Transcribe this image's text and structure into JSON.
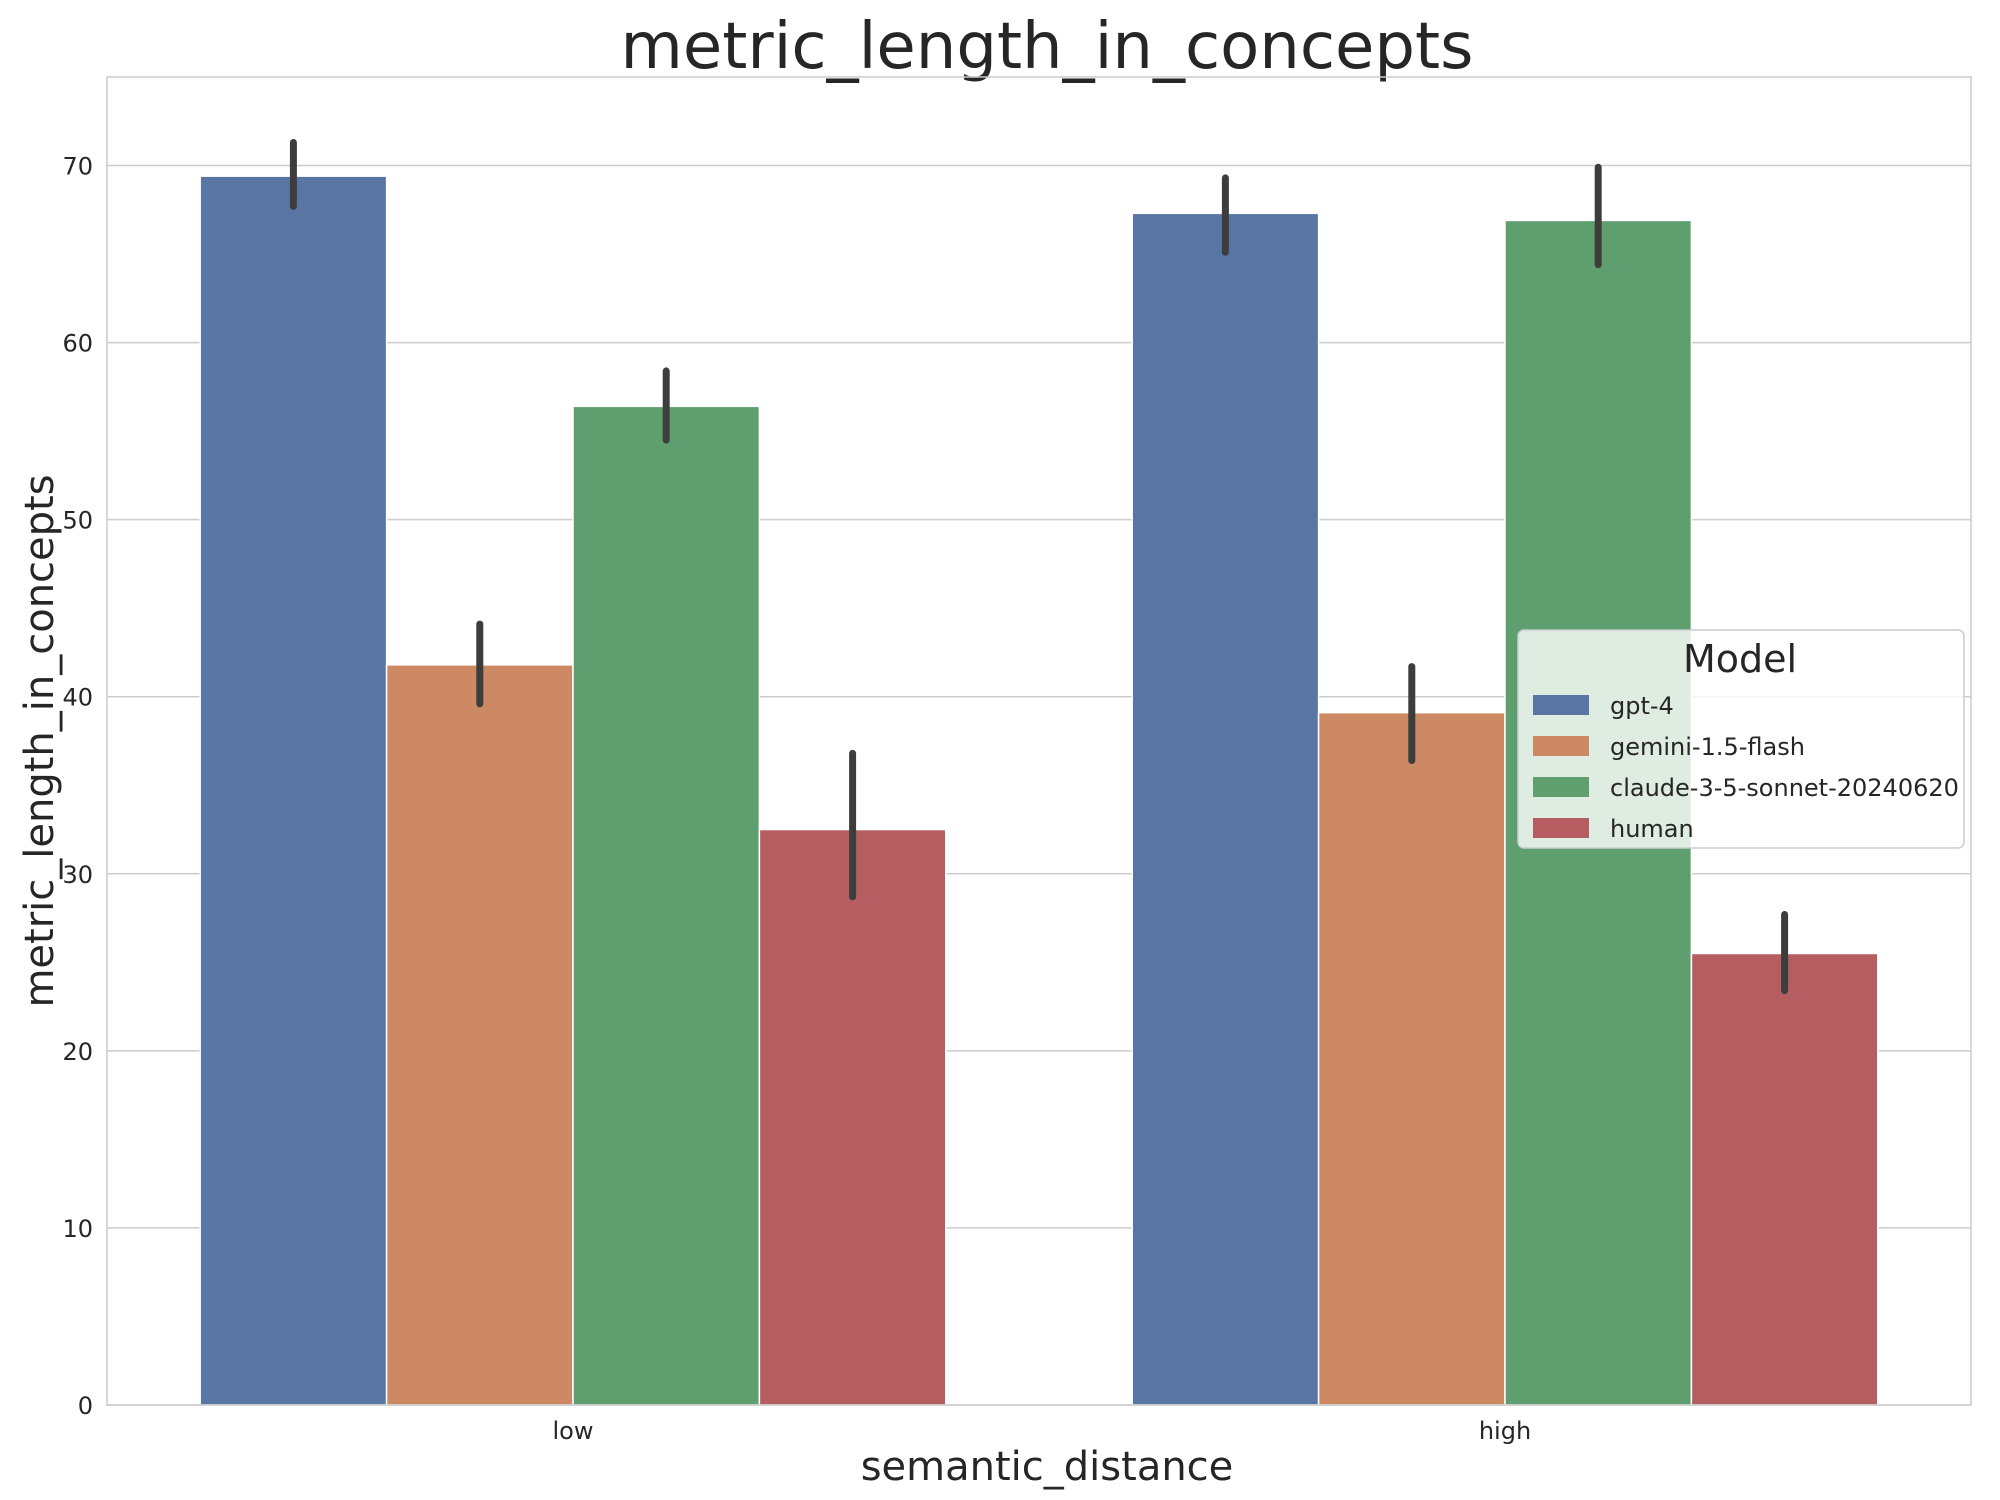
{
  "chart_data": {
    "type": "bar",
    "title": "metric_length_in_concepts",
    "xlabel": "semantic_distance",
    "ylabel": "metric_length_in_concepts",
    "categories": [
      "low",
      "high"
    ],
    "ylim": [
      0,
      75
    ],
    "yticks": [
      0,
      10,
      20,
      30,
      40,
      50,
      60,
      70
    ],
    "grid": true,
    "legend": {
      "title": "Model",
      "position": "center-right"
    },
    "series": [
      {
        "name": "gpt-4",
        "color": "#5975a4",
        "values": [
          69.4,
          67.3
        ],
        "ci": [
          [
            67.7,
            71.3
          ],
          [
            65.1,
            69.3
          ]
        ]
      },
      {
        "name": "gemini-1.5-flash",
        "color": "#cc8963",
        "values": [
          41.8,
          39.1
        ],
        "ci": [
          [
            39.6,
            44.1
          ],
          [
            36.4,
            41.7
          ]
        ]
      },
      {
        "name": "claude-3-5-sonnet-20240620",
        "color": "#5f9e6e",
        "values": [
          56.4,
          66.9
        ],
        "ci": [
          [
            54.5,
            58.4
          ],
          [
            64.4,
            69.9
          ]
        ]
      },
      {
        "name": "human",
        "color": "#b55d60",
        "values": [
          32.5,
          25.5
        ],
        "ci": [
          [
            28.7,
            36.8
          ],
          [
            23.4,
            27.7
          ]
        ]
      }
    ]
  }
}
